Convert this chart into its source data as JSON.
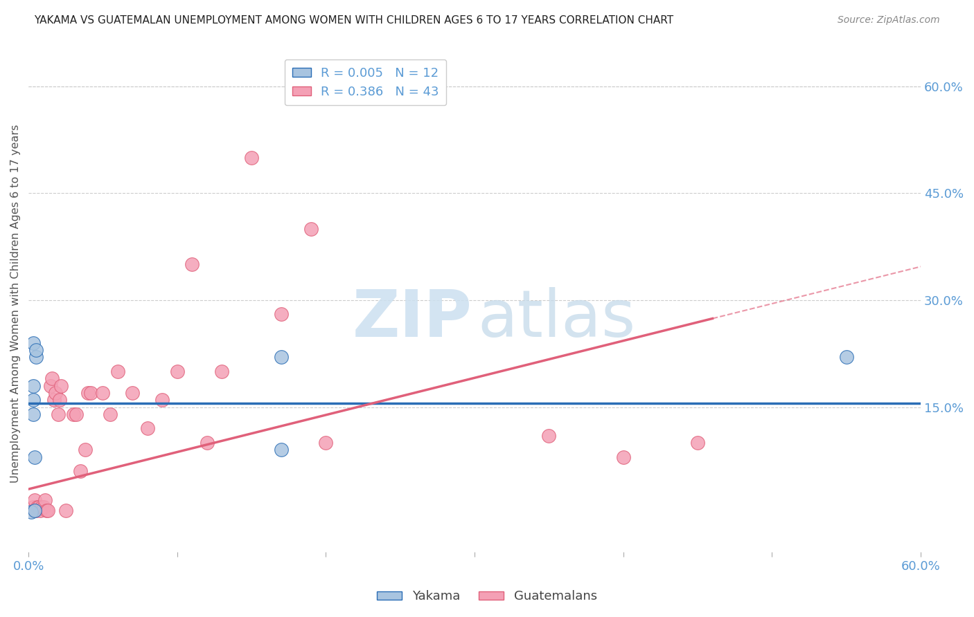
{
  "title": "YAKAMA VS GUATEMALAN UNEMPLOYMENT AMONG WOMEN WITH CHILDREN AGES 6 TO 17 YEARS CORRELATION CHART",
  "source": "Source: ZipAtlas.com",
  "ylabel": "Unemployment Among Women with Children Ages 6 to 17 years",
  "xlim": [
    0.0,
    0.6
  ],
  "ylim": [
    -0.06,
    0.65
  ],
  "yticks_right": [
    0.15,
    0.3,
    0.45,
    0.6
  ],
  "ytick_right_labels": [
    "15.0%",
    "30.0%",
    "45.0%",
    "60.0%"
  ],
  "xticks": [
    0.0,
    0.1,
    0.2,
    0.3,
    0.4,
    0.5,
    0.6
  ],
  "xtick_labels": [
    "0.0%",
    "",
    "",
    "",
    "",
    "",
    "60.0%"
  ],
  "yakama_R": "0.005",
  "yakama_N": "12",
  "guatemalan_R": "0.386",
  "guatemalan_N": "43",
  "yakama_color": "#a8c4e0",
  "yakama_line_color": "#2a6db5",
  "guatemalan_color": "#f4a0b5",
  "guatemalan_line_color": "#e0607a",
  "background_color": "#ffffff",
  "legend_edge_color": "#cccccc",
  "grid_color": "#cccccc",
  "tick_label_color": "#5b9bd5",
  "title_color": "#222222",
  "source_color": "#888888",
  "ylabel_color": "#555555",
  "watermark_zip_color": "#cce0f0",
  "watermark_atlas_color": "#c5daea",
  "yakama_x": [
    0.002,
    0.003,
    0.003,
    0.003,
    0.004,
    0.004,
    0.005,
    0.005,
    0.003,
    0.17,
    0.17,
    0.55
  ],
  "yakama_y": [
    0.003,
    0.14,
    0.16,
    0.24,
    0.005,
    0.08,
    0.22,
    0.23,
    0.18,
    0.22,
    0.09,
    0.22
  ],
  "guatemalan_x": [
    0.003,
    0.004,
    0.004,
    0.005,
    0.006,
    0.007,
    0.008,
    0.009,
    0.01,
    0.011,
    0.012,
    0.013,
    0.015,
    0.016,
    0.017,
    0.018,
    0.02,
    0.021,
    0.022,
    0.025,
    0.03,
    0.032,
    0.035,
    0.038,
    0.04,
    0.042,
    0.05,
    0.055,
    0.06,
    0.07,
    0.08,
    0.09,
    0.1,
    0.11,
    0.12,
    0.13,
    0.15,
    0.17,
    0.19,
    0.2,
    0.35,
    0.4,
    0.45
  ],
  "guatemalan_y": [
    0.01,
    0.02,
    0.005,
    0.005,
    0.01,
    0.01,
    0.005,
    0.01,
    0.01,
    0.02,
    0.005,
    0.005,
    0.18,
    0.19,
    0.16,
    0.17,
    0.14,
    0.16,
    0.18,
    0.005,
    0.14,
    0.14,
    0.06,
    0.09,
    0.17,
    0.17,
    0.17,
    0.14,
    0.2,
    0.17,
    0.12,
    0.16,
    0.2,
    0.35,
    0.1,
    0.2,
    0.5,
    0.28,
    0.4,
    0.1,
    0.11,
    0.08,
    0.1
  ],
  "trendline_solid_end": 0.46,
  "yakama_trendline_y": 0.155,
  "guatemalan_slope": 0.52,
  "guatemalan_intercept": 0.035
}
